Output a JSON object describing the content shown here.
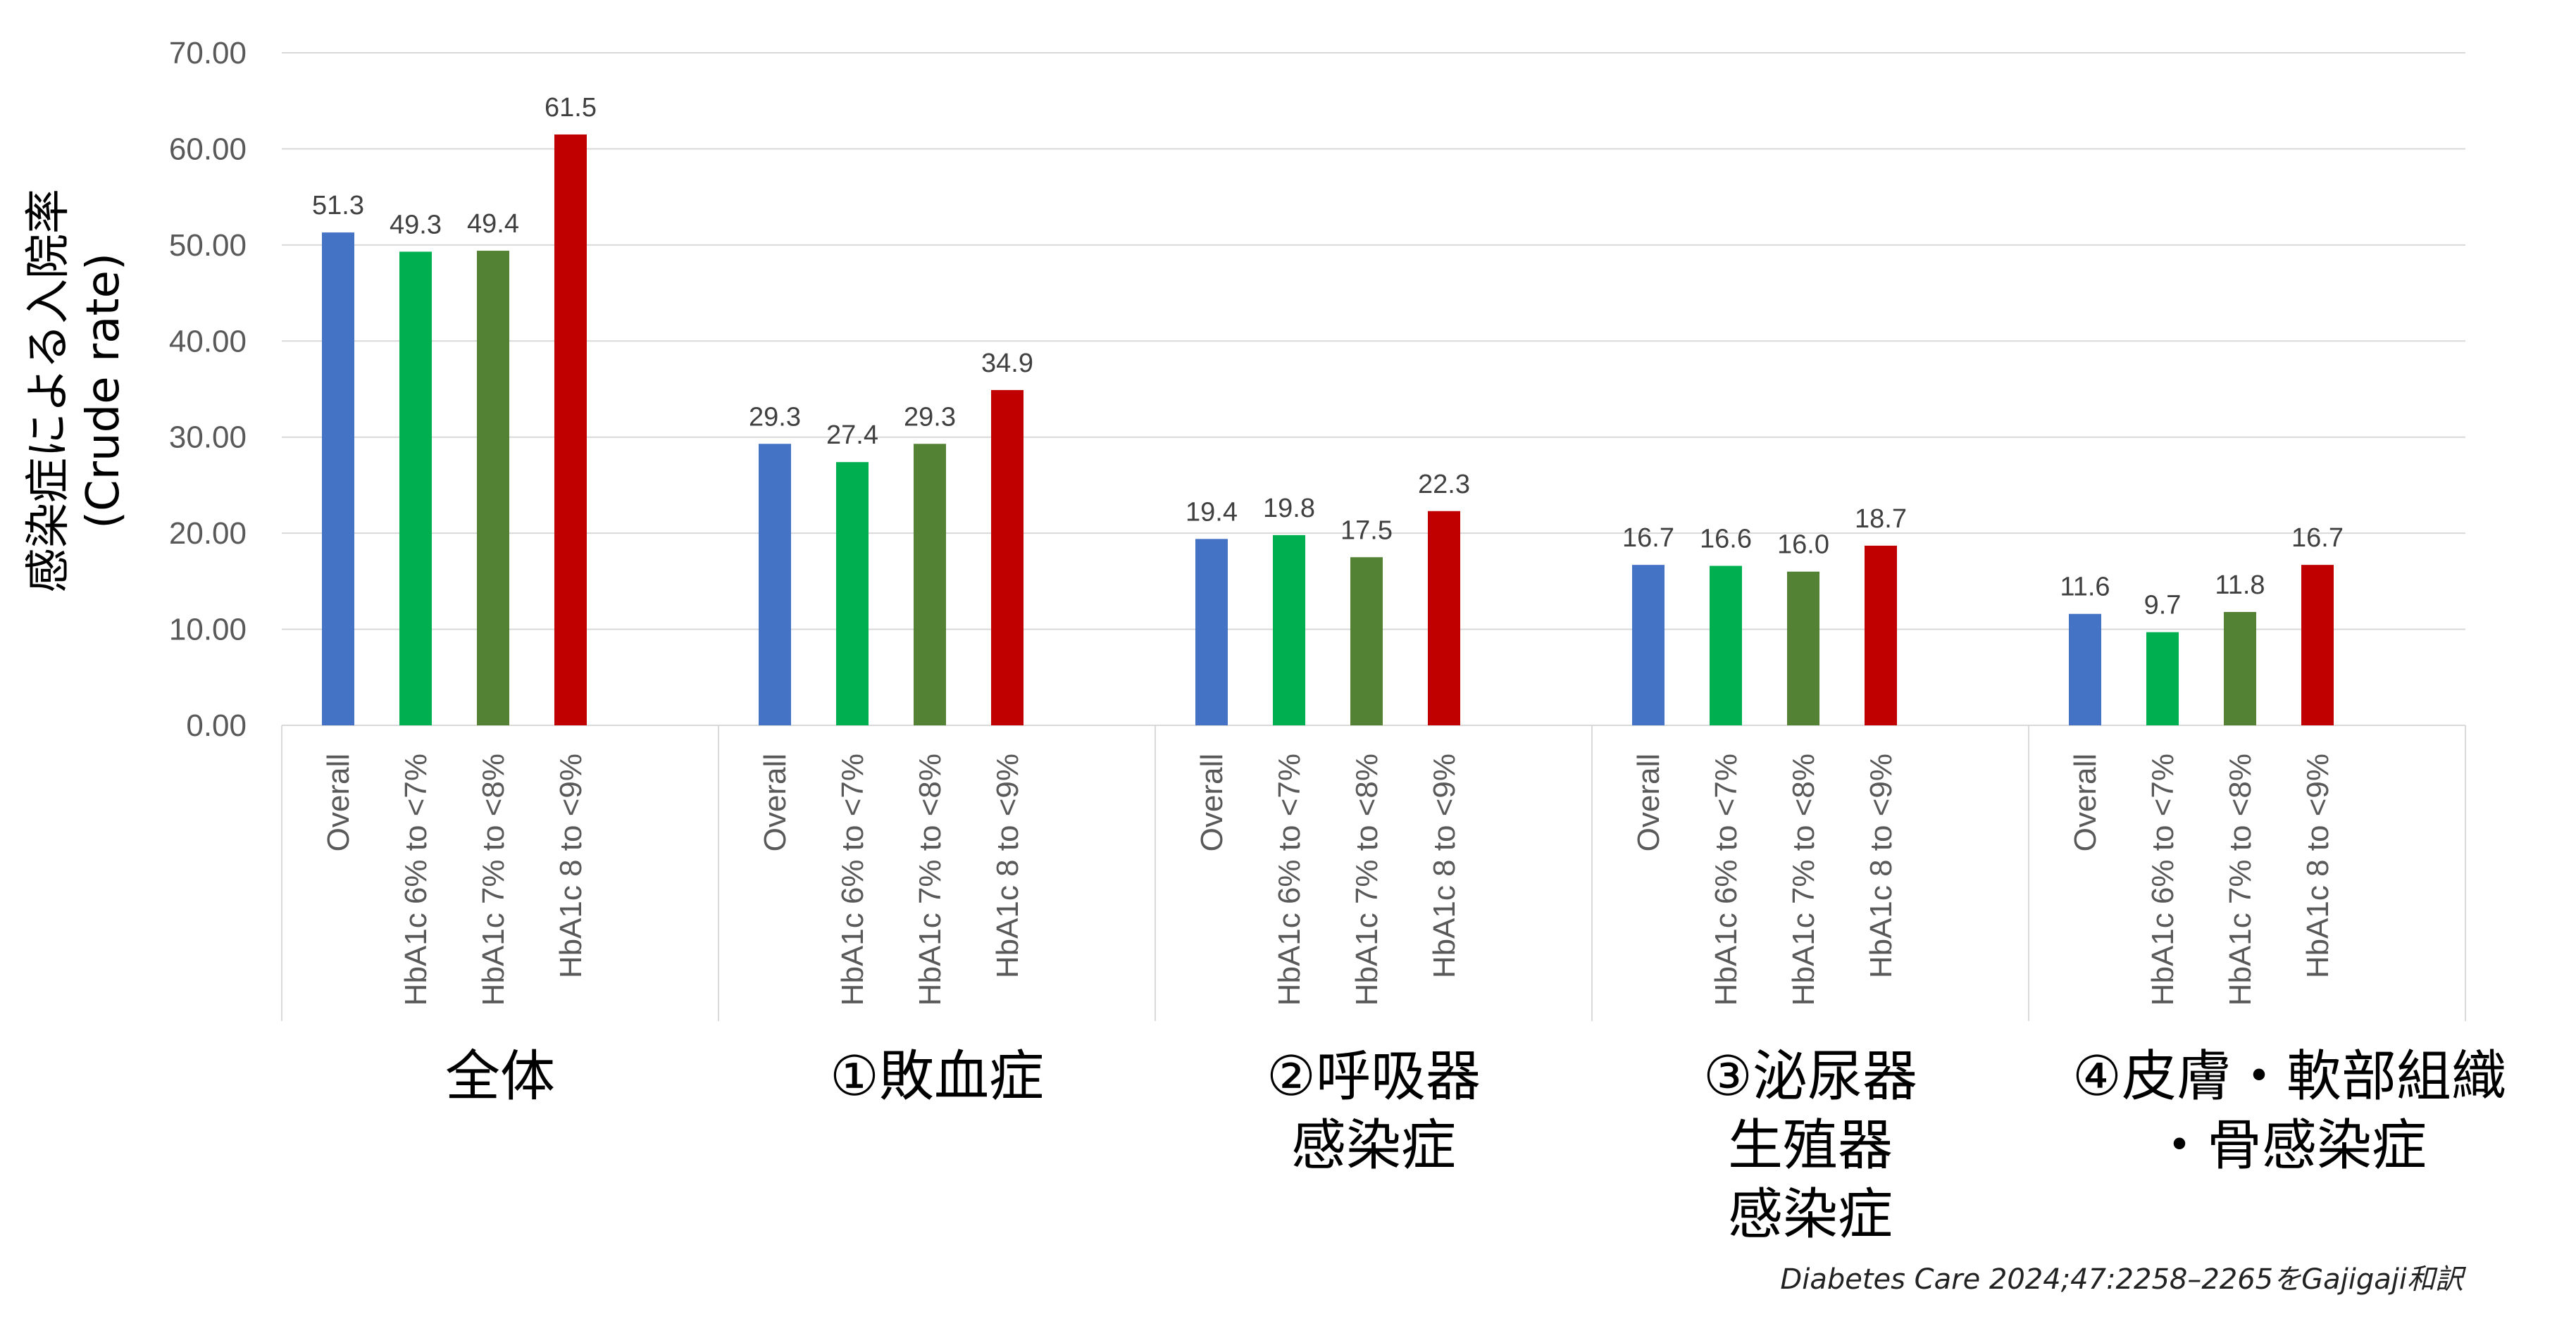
{
  "chart_data": {
    "type": "bar",
    "ylabel_lines": [
      "感染症による入院率",
      "(Crude rate)"
    ],
    "ylim": [
      0,
      70
    ],
    "yticks": [
      "0.00",
      "10.00",
      "20.00",
      "30.00",
      "40.00",
      "50.00",
      "60.00",
      "70.00"
    ],
    "grid": true,
    "category_labels": [
      "Overall",
      "HbA1c 6% to <7%",
      "HbA1c 7% to <8%",
      "HbA1c 8 to <9%"
    ],
    "groups": [
      {
        "label_lines": [
          "全体"
        ],
        "values": [
          51.3,
          49.3,
          49.4,
          61.5
        ]
      },
      {
        "label_lines": [
          "①敗血症"
        ],
        "values": [
          29.3,
          27.4,
          29.3,
          34.9
        ]
      },
      {
        "label_lines": [
          "②呼吸器",
          "感染症"
        ],
        "values": [
          19.4,
          19.8,
          17.5,
          22.3
        ]
      },
      {
        "label_lines": [
          "③泌尿器",
          "生殖器",
          "感染症"
        ],
        "values": [
          16.7,
          16.6,
          16.0,
          18.7
        ]
      },
      {
        "label_lines": [
          "④皮膚・軟部組織",
          "・骨感染症"
        ],
        "values": [
          11.6,
          9.7,
          11.8,
          16.7
        ]
      }
    ],
    "colors": [
      "#4472C4",
      "#00B050",
      "#548235",
      "#C00000"
    ]
  },
  "source": "Diabetes Care 2024;47:2258–2265をGajigaji和訳"
}
